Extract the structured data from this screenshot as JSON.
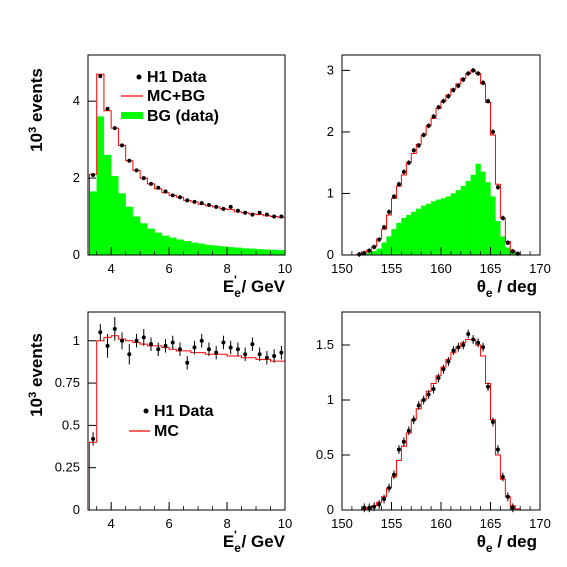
{
  "figure": {
    "background": "#ffffff",
    "colors": {
      "data": "#000000",
      "mc": "#ff0000",
      "bg": "#00ff00"
    }
  },
  "chart_data": [
    {
      "type": "histogram",
      "panel": "top-left",
      "xlabel": "E'e / GeV",
      "ylabel": "10^3 events",
      "xlim": [
        3.2,
        10
      ],
      "ylim": [
        0,
        5.2
      ],
      "xticks": [
        "4",
        "6",
        "8",
        "10"
      ],
      "yticks": [
        "0",
        "2",
        "4"
      ],
      "legend": {
        "placement": "top-right",
        "entries": [
          "H1 Data",
          "MC+BG",
          "BG (data)"
        ]
      },
      "bin_edges": [
        3.25,
        3.5,
        3.75,
        4.0,
        4.25,
        4.5,
        4.75,
        5.0,
        5.25,
        5.5,
        5.75,
        6.0,
        6.25,
        6.5,
        6.75,
        7.0,
        7.25,
        7.5,
        7.75,
        8.0,
        8.25,
        8.5,
        8.75,
        9.0,
        9.25,
        9.5,
        9.75,
        10.0
      ],
      "data": [
        2.08,
        4.65,
        3.8,
        3.3,
        2.85,
        2.45,
        2.2,
        2.0,
        1.85,
        1.75,
        1.65,
        1.55,
        1.5,
        1.42,
        1.38,
        1.35,
        1.3,
        1.25,
        1.2,
        1.25,
        1.15,
        1.1,
        1.05,
        1.1,
        1.05,
        1.0,
        1.0
      ],
      "mc_bg": [
        2.1,
        4.7,
        3.75,
        3.3,
        2.85,
        2.45,
        2.2,
        2.0,
        1.85,
        1.72,
        1.62,
        1.55,
        1.5,
        1.42,
        1.38,
        1.32,
        1.28,
        1.25,
        1.2,
        1.18,
        1.12,
        1.1,
        1.07,
        1.05,
        1.02,
        1.0,
        0.98
      ],
      "bg": [
        1.65,
        3.6,
        2.6,
        2.05,
        1.6,
        1.25,
        1.0,
        0.82,
        0.68,
        0.58,
        0.5,
        0.45,
        0.4,
        0.36,
        0.32,
        0.29,
        0.26,
        0.24,
        0.22,
        0.2,
        0.19,
        0.17,
        0.16,
        0.15,
        0.14,
        0.13,
        0.12
      ],
      "data_err": 0.04
    },
    {
      "type": "histogram",
      "panel": "top-right",
      "xlabel": "θe / deg",
      "ylabel": "",
      "xlim": [
        150,
        170
      ],
      "ylim": [
        0,
        3.25
      ],
      "xticks": [
        "150",
        "155",
        "160",
        "165",
        "170"
      ],
      "yticks": [
        "0",
        "1",
        "2",
        "3"
      ],
      "bin_edges": [
        150,
        150.5,
        151,
        151.5,
        152,
        152.5,
        153,
        153.5,
        154,
        154.5,
        155,
        155.5,
        156,
        156.5,
        157,
        157.5,
        158,
        158.5,
        159,
        159.5,
        160,
        160.5,
        161,
        161.5,
        162,
        162.5,
        163,
        163.5,
        164,
        164.5,
        165,
        165.5,
        166,
        166.5,
        167,
        167.5,
        168,
        168.5,
        169,
        169.5,
        170
      ],
      "data": [
        0,
        0,
        0,
        0.01,
        0.03,
        0.07,
        0.13,
        0.25,
        0.45,
        0.7,
        0.95,
        1.15,
        1.35,
        1.5,
        1.7,
        1.78,
        1.95,
        2.1,
        2.25,
        2.4,
        2.5,
        2.58,
        2.68,
        2.75,
        2.85,
        2.95,
        3.0,
        2.95,
        2.8,
        2.5,
        2.0,
        1.1,
        0.6,
        0.2,
        0.06,
        0.02,
        0,
        0,
        0,
        0
      ],
      "mc_bg": [
        0,
        0,
        0,
        0.01,
        0.04,
        0.08,
        0.14,
        0.26,
        0.42,
        0.65,
        0.92,
        1.12,
        1.3,
        1.5,
        1.65,
        1.8,
        1.95,
        2.1,
        2.22,
        2.38,
        2.5,
        2.6,
        2.7,
        2.78,
        2.87,
        2.95,
        3.0,
        2.95,
        2.78,
        2.48,
        1.95,
        1.15,
        0.6,
        0.22,
        0.07,
        0.02,
        0,
        0,
        0,
        0
      ],
      "bg": [
        0,
        0,
        0,
        0,
        0.01,
        0.03,
        0.06,
        0.1,
        0.2,
        0.3,
        0.42,
        0.52,
        0.6,
        0.65,
        0.7,
        0.75,
        0.8,
        0.83,
        0.87,
        0.9,
        0.92,
        0.95,
        1.0,
        1.05,
        1.12,
        1.2,
        1.3,
        1.48,
        1.35,
        1.18,
        0.95,
        0.55,
        0.3,
        0.12,
        0.04,
        0.01,
        0,
        0,
        0,
        0
      ],
      "data_err": 0.04
    },
    {
      "type": "histogram",
      "panel": "bottom-left",
      "xlabel": "E'e / GeV",
      "ylabel": "10^3 events",
      "xlim": [
        3.2,
        10
      ],
      "ylim": [
        0,
        1.17
      ],
      "xticks": [
        "4",
        "6",
        "8",
        "10"
      ],
      "yticks": [
        "0",
        "0.25",
        "0.5",
        "0.75",
        "1"
      ],
      "legend": {
        "placement": "center-left",
        "entries": [
          "H1 Data",
          "MC"
        ]
      },
      "bin_edges": [
        3.25,
        3.5,
        3.75,
        4.0,
        4.25,
        4.5,
        4.75,
        5.0,
        5.25,
        5.5,
        5.75,
        6.0,
        6.25,
        6.5,
        6.75,
        7.0,
        7.25,
        7.5,
        7.75,
        8.0,
        8.25,
        8.5,
        8.75,
        9.0,
        9.25,
        9.5,
        9.75,
        10.0
      ],
      "data": [
        0.42,
        1.05,
        0.97,
        1.07,
        1.0,
        0.92,
        1.0,
        1.02,
        0.98,
        0.95,
        0.97,
        0.99,
        0.95,
        0.87,
        0.96,
        1.0,
        0.95,
        0.93,
        0.99,
        0.96,
        0.95,
        0.92,
        0.98,
        0.92,
        0.9,
        0.91,
        0.93
      ],
      "mc": [
        0.4,
        1.0,
        1.02,
        1.03,
        1.01,
        1.0,
        0.99,
        0.98,
        0.97,
        0.97,
        0.96,
        0.95,
        0.94,
        0.94,
        0.93,
        0.93,
        0.92,
        0.92,
        0.92,
        0.91,
        0.91,
        0.9,
        0.9,
        0.89,
        0.89,
        0.88,
        0.88
      ],
      "data_err": [
        0.04,
        0.05,
        0.07,
        0.07,
        0.05,
        0.06,
        0.04,
        0.05,
        0.04,
        0.04,
        0.04,
        0.04,
        0.04,
        0.04,
        0.04,
        0.04,
        0.04,
        0.04,
        0.04,
        0.04,
        0.04,
        0.04,
        0.04,
        0.04,
        0.04,
        0.04,
        0.04
      ]
    },
    {
      "type": "histogram",
      "panel": "bottom-right",
      "xlabel": "θe / deg",
      "ylabel": "",
      "xlim": [
        150,
        170
      ],
      "ylim": [
        0,
        1.8
      ],
      "xticks": [
        "150",
        "155",
        "160",
        "165",
        "170"
      ],
      "yticks": [
        "0",
        "0.5",
        "1",
        "1.5"
      ],
      "bin_edges": [
        150,
        150.5,
        151,
        151.5,
        152,
        152.5,
        153,
        153.5,
        154,
        154.5,
        155,
        155.5,
        156,
        156.5,
        157,
        157.5,
        158,
        158.5,
        159,
        159.5,
        160,
        160.5,
        161,
        161.5,
        162,
        162.5,
        163,
        163.5,
        164,
        164.5,
        165,
        165.5,
        166,
        166.5,
        167,
        167.5,
        168,
        168.5,
        169,
        169.5,
        170
      ],
      "data": [
        0,
        0,
        0,
        0,
        0.02,
        0.02,
        0.03,
        0.05,
        0.1,
        0.2,
        0.32,
        0.55,
        0.62,
        0.72,
        0.82,
        0.95,
        1.0,
        1.05,
        1.1,
        1.2,
        1.28,
        1.35,
        1.45,
        1.48,
        1.5,
        1.6,
        1.55,
        1.52,
        1.48,
        1.12,
        0.8,
        0.55,
        0.3,
        0.12,
        0.02,
        0,
        0,
        0,
        0,
        0
      ],
      "mc": [
        0,
        0,
        0,
        0,
        0.01,
        0.02,
        0.04,
        0.07,
        0.12,
        0.2,
        0.3,
        0.45,
        0.58,
        0.7,
        0.82,
        0.92,
        1.0,
        1.08,
        1.15,
        1.22,
        1.3,
        1.37,
        1.43,
        1.48,
        1.52,
        1.55,
        1.55,
        1.5,
        1.4,
        1.15,
        0.82,
        0.5,
        0.28,
        0.12,
        0.04,
        0.01,
        0,
        0,
        0,
        0
      ],
      "data_err": 0.04
    }
  ]
}
